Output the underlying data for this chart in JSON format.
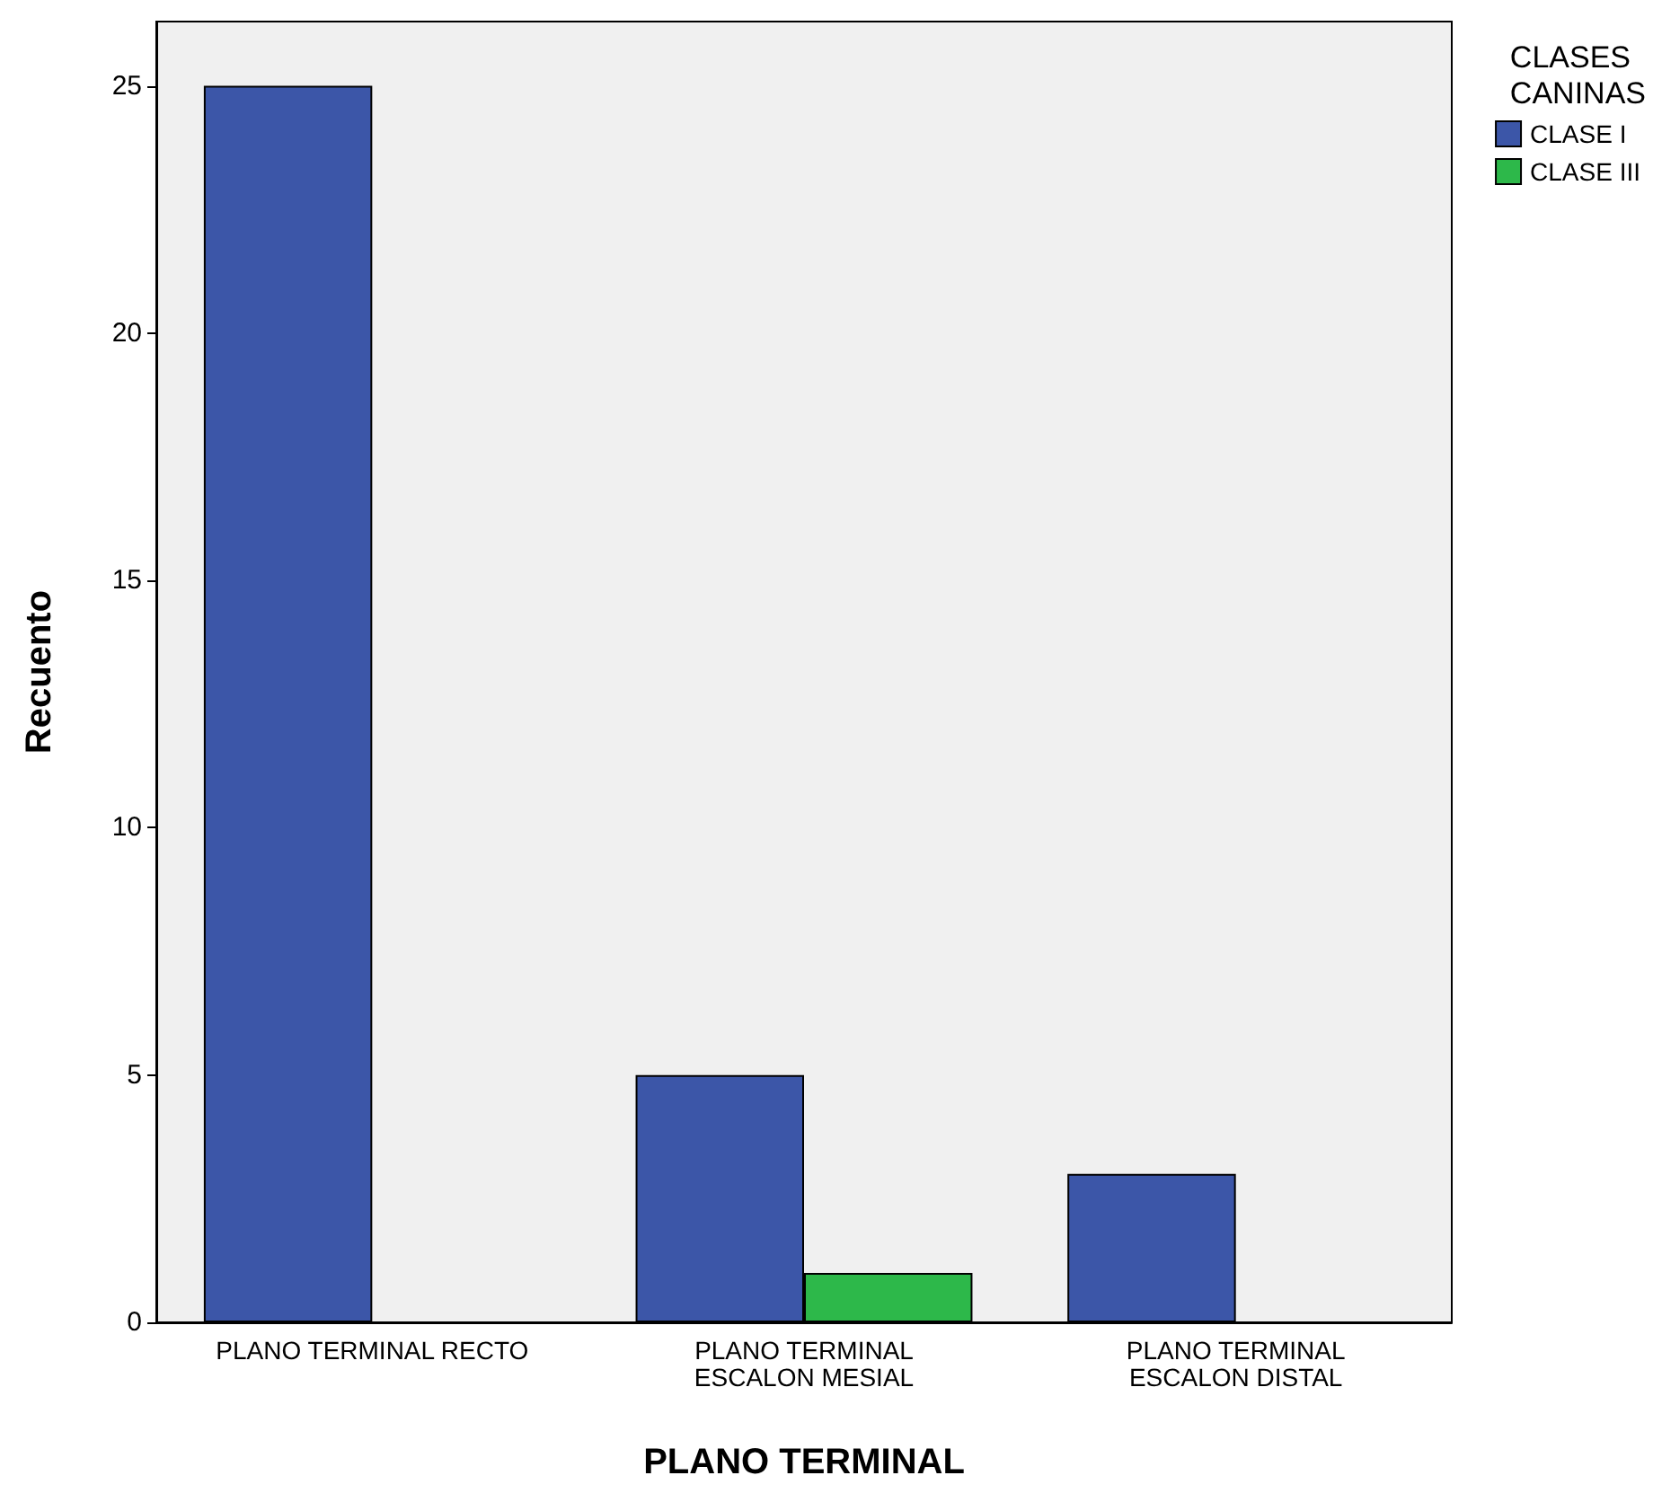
{
  "chart_data": {
    "type": "bar",
    "xlabel": "PLANO TERMINAL",
    "ylabel": "Recuento",
    "legend_title": "CLASES\nCANINAS",
    "categories": [
      "PLANO TERMINAL RECTO",
      "PLANO TERMINAL\nESCALON MESIAL",
      "PLANO TERMINAL\nESCALON DISTAL"
    ],
    "series": [
      {
        "name": "CLASE I",
        "color": "#3c56a8",
        "values": [
          25,
          5,
          3
        ]
      },
      {
        "name": "CLASE III",
        "color": "#2db84a",
        "values": [
          null,
          1,
          null
        ]
      }
    ],
    "ylim": [
      0,
      26.3
    ],
    "yticks": [
      0,
      5,
      10,
      15,
      20,
      25
    ],
    "grid": false,
    "legend": "top right"
  }
}
